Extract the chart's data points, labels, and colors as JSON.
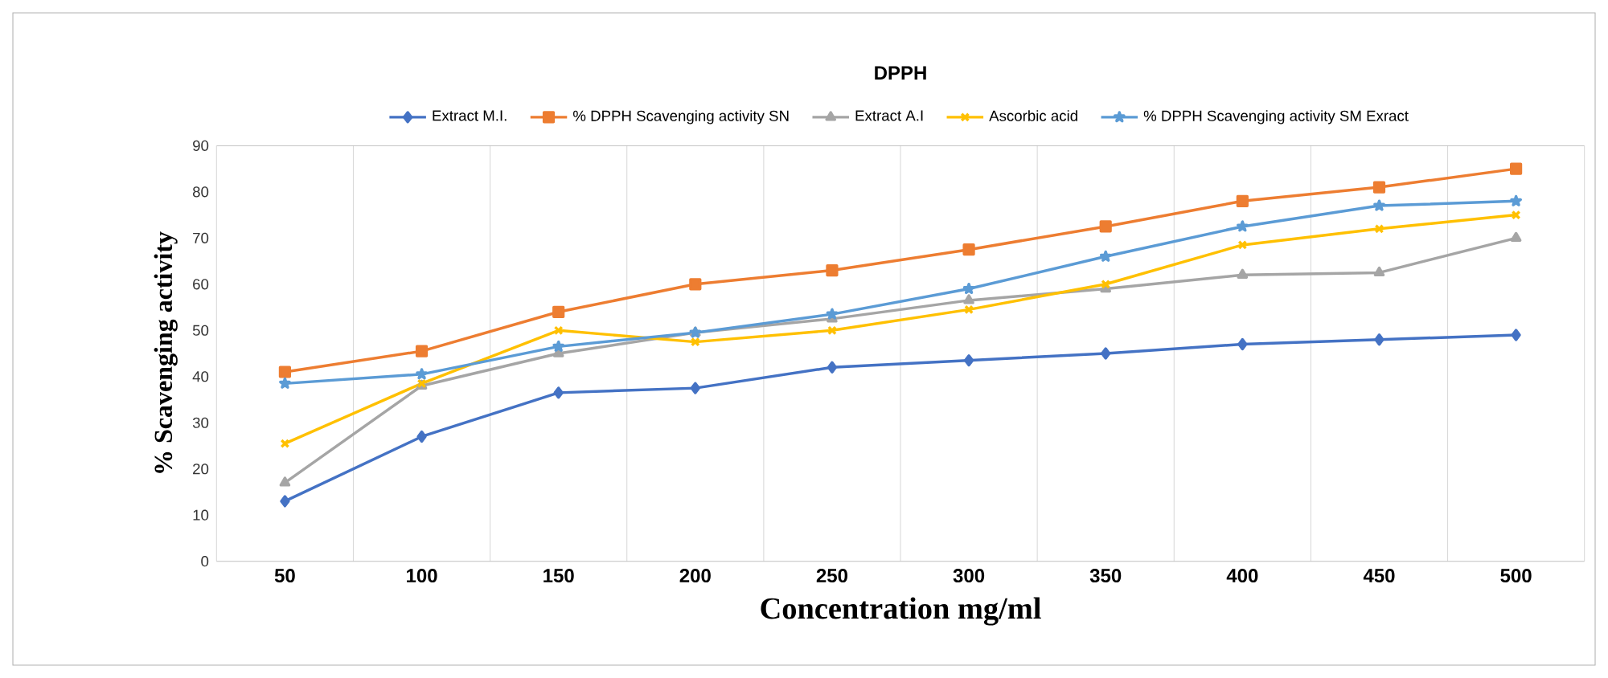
{
  "chart_data": {
    "type": "line",
    "title": "DPPH",
    "xlabel": "Concentration mg/ml",
    "ylabel": "% Scavenging activity",
    "categories": [
      "50",
      "100",
      "150",
      "200",
      "250",
      "300",
      "350",
      "400",
      "450",
      "500"
    ],
    "series": [
      {
        "name": "Extract M.I.",
        "color": "#4472c4",
        "marker": "diamond",
        "values": [
          13,
          27,
          36.5,
          37.5,
          42,
          43.5,
          45,
          47,
          48,
          49
        ]
      },
      {
        "name": "% DPPH Scavenging activity  SN",
        "color": "#ed7d31",
        "marker": "square",
        "values": [
          41,
          45.5,
          54,
          60,
          63,
          67.5,
          72.5,
          78,
          81,
          85
        ]
      },
      {
        "name": "Extract A.I",
        "color": "#a5a5a5",
        "marker": "triangle",
        "values": [
          17,
          38,
          45,
          49.5,
          52.5,
          56.5,
          59,
          62,
          62.5,
          70
        ]
      },
      {
        "name": "Ascorbic acid",
        "color": "#ffc000",
        "marker": "cross",
        "values": [
          25.5,
          38.5,
          50,
          47.5,
          50,
          54.5,
          60,
          68.5,
          72,
          75
        ]
      },
      {
        "name": "% DPPH Scavenging activity  SM  Exract",
        "color": "#5b9bd5",
        "marker": "star",
        "values": [
          38.5,
          40.5,
          46.5,
          49.5,
          53.5,
          59,
          66,
          72.5,
          77,
          78
        ]
      }
    ],
    "ylim": [
      0,
      90
    ],
    "yticks": [
      0,
      10,
      20,
      30,
      40,
      50,
      60,
      70,
      80,
      90
    ],
    "grid": "x",
    "legend": "top"
  }
}
